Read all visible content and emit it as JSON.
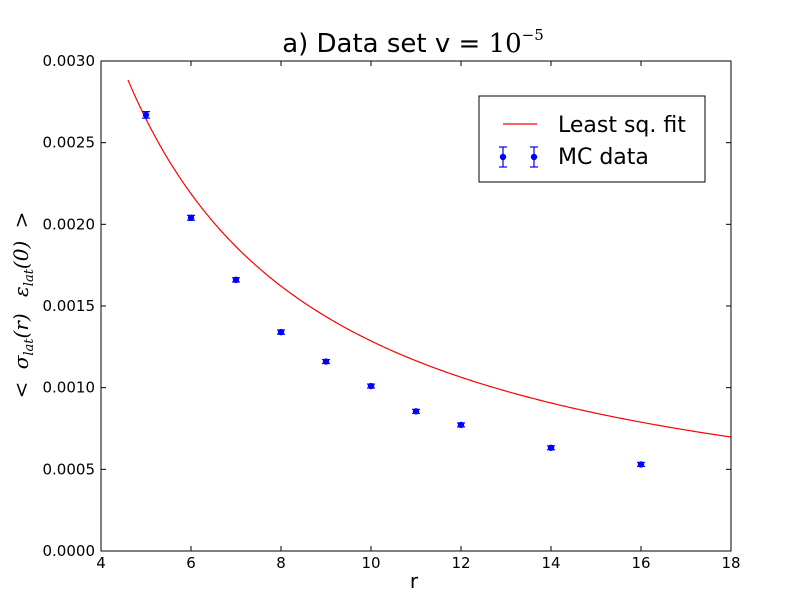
{
  "chart_data": {
    "type": "scatter",
    "title_prefix": "a) Data set v = ",
    "title_math": "10",
    "title_exp": "−5",
    "xlabel": "r",
    "ylabel": "< σlat(r) εlat(0) >",
    "ylabel_parts": {
      "lt": "<",
      "sigma": "σ",
      "sigma_sub": "lat",
      "sigma_arg": "(r)",
      "eps": "ε",
      "eps_sub": "lat",
      "eps_arg": "(0)",
      "gt": ">"
    },
    "xlim": [
      4,
      18
    ],
    "ylim": [
      0,
      0.003
    ],
    "xticks": [
      4,
      6,
      8,
      10,
      12,
      14,
      16,
      18
    ],
    "xtick_labels": [
      "4",
      "6",
      "8",
      "10",
      "12",
      "14",
      "16",
      "18"
    ],
    "yticks": [
      0,
      0.0005,
      0.001,
      0.0015,
      0.002,
      0.0025,
      0.003
    ],
    "ytick_labels": [
      "0.0000",
      "0.0005",
      "0.0010",
      "0.0015",
      "0.0020",
      "0.0025",
      "0.0030"
    ],
    "grid": false,
    "legend_position": "top-right",
    "series": [
      {
        "name": "Least sq. fit",
        "kind": "line",
        "color": "#ff0000",
        "model": {
          "form": "a / r^b",
          "a": 0.0141,
          "b": 1.04
        },
        "x_range": [
          4.6,
          18
        ]
      },
      {
        "name": "MC data",
        "kind": "errorbar",
        "color": "#0000ff",
        "points": [
          {
            "x": 5,
            "y": 0.00267,
            "err": 2e-05
          },
          {
            "x": 6,
            "y": 0.00204,
            "err": 1.5e-05
          },
          {
            "x": 7,
            "y": 0.00166,
            "err": 1.3e-05
          },
          {
            "x": 8,
            "y": 0.00134,
            "err": 1.3e-05
          },
          {
            "x": 9,
            "y": 0.00116,
            "err": 1.2e-05
          },
          {
            "x": 10,
            "y": 0.00101,
            "err": 1.2e-05
          },
          {
            "x": 11,
            "y": 0.000855,
            "err": 1.2e-05
          },
          {
            "x": 12,
            "y": 0.000772,
            "err": 1.2e-05
          },
          {
            "x": 14,
            "y": 0.000632,
            "err": 1.2e-05
          },
          {
            "x": 16,
            "y": 0.00053,
            "err": 1.2e-05
          }
        ]
      }
    ],
    "legend": [
      "Least sq. fit",
      "MC data"
    ]
  }
}
